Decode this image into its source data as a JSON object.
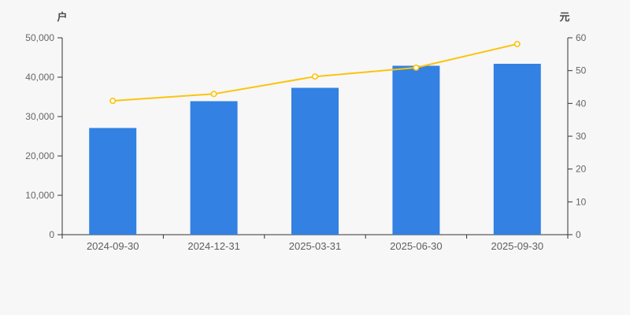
{
  "chart": {
    "background": "#f7f7f8",
    "bar_color": "#3381e2",
    "line_color": "#fcc40a",
    "marker_fill": "#ffffff",
    "axis_color": "#333333",
    "label_color": "#666666"
  },
  "chart_data": {
    "type": "bar+line",
    "categories": [
      "2024-09-30",
      "2024-12-31",
      "2025-03-31",
      "2025-06-30",
      "2025-09-30"
    ],
    "series": [
      {
        "type": "bar",
        "axis": "left",
        "values": [
          27100,
          33900,
          37300,
          42900,
          43400
        ]
      },
      {
        "type": "line",
        "axis": "right",
        "values": [
          40.8,
          42.9,
          48.2,
          50.9,
          58.1
        ]
      }
    ],
    "left_axis": {
      "unit": "户",
      "min": 0,
      "max": 50000,
      "ticks": [
        "0",
        "10,000",
        "20,000",
        "30,000",
        "40,000",
        "50,000"
      ]
    },
    "right_axis": {
      "unit": "元",
      "min": 0,
      "max": 60,
      "ticks": [
        "0",
        "10",
        "20",
        "30",
        "40",
        "50",
        "60"
      ]
    },
    "grid": false,
    "legend": "none"
  }
}
